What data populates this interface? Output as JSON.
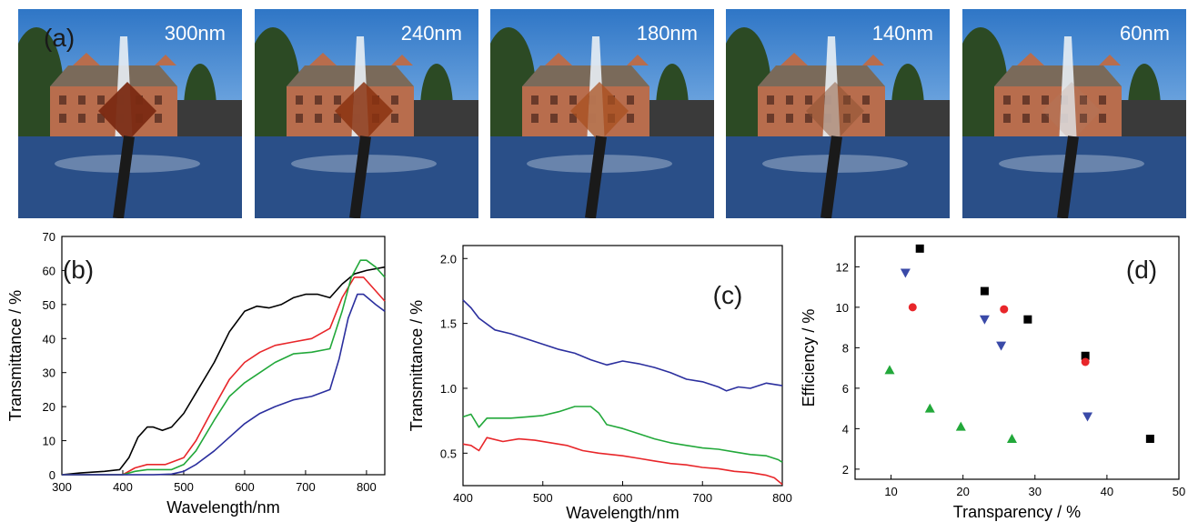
{
  "panel_a": {
    "label": "(a)",
    "photos": [
      {
        "caption": "300nm",
        "tint": "#7a2a12",
        "tint_opacity": 0.95
      },
      {
        "caption": "240nm",
        "tint": "#8a3210",
        "tint_opacity": 0.85
      },
      {
        "caption": "180nm",
        "tint": "#a85020",
        "tint_opacity": 0.75
      },
      {
        "caption": "140nm",
        "tint": "#8a5030",
        "tint_opacity": 0.5
      },
      {
        "caption": "60nm",
        "tint": "#b08070",
        "tint_opacity": 0.2
      }
    ],
    "colors": {
      "sky": "#2f76c6",
      "sky_light": "#7fb2e6",
      "building": "#b86d4d",
      "roof": "#7a6a5a",
      "water": "#2a4f88",
      "tree": "#2c4a24",
      "fountain": "#e8eef4",
      "stick": "#1a1a1a"
    }
  },
  "chart_data": [
    {
      "panel": "(b)",
      "type": "line",
      "xlabel": "Wavelength/nm",
      "ylabel": "Transmittance / %",
      "xlim": [
        300,
        830
      ],
      "ylim": [
        0,
        70
      ],
      "xticks": [
        300,
        400,
        500,
        600,
        700,
        800
      ],
      "yticks": [
        0,
        10,
        20,
        30,
        40,
        50,
        60,
        70
      ],
      "grid": false,
      "series": [
        {
          "color": "#000000",
          "points": [
            [
              300,
              0
            ],
            [
              330,
              0.5
            ],
            [
              370,
              1
            ],
            [
              395,
              1.5
            ],
            [
              410,
              5
            ],
            [
              425,
              11
            ],
            [
              440,
              14
            ],
            [
              450,
              14
            ],
            [
              465,
              13
            ],
            [
              480,
              14
            ],
            [
              500,
              18
            ],
            [
              520,
              24
            ],
            [
              550,
              33
            ],
            [
              575,
              42
            ],
            [
              600,
              48
            ],
            [
              620,
              49.5
            ],
            [
              640,
              49
            ],
            [
              660,
              50
            ],
            [
              680,
              52
            ],
            [
              700,
              53
            ],
            [
              720,
              53
            ],
            [
              740,
              52
            ],
            [
              760,
              56
            ],
            [
              780,
              59
            ],
            [
              800,
              60
            ],
            [
              830,
              61
            ]
          ]
        },
        {
          "color": "#e8262a",
          "points": [
            [
              300,
              0
            ],
            [
              400,
              0
            ],
            [
              420,
              2
            ],
            [
              440,
              3
            ],
            [
              470,
              3
            ],
            [
              500,
              5
            ],
            [
              520,
              10
            ],
            [
              550,
              20
            ],
            [
              575,
              28
            ],
            [
              600,
              33
            ],
            [
              625,
              36
            ],
            [
              650,
              38
            ],
            [
              680,
              39
            ],
            [
              710,
              40
            ],
            [
              740,
              43
            ],
            [
              760,
              52
            ],
            [
              780,
              58
            ],
            [
              795,
              58
            ],
            [
              815,
              54
            ],
            [
              830,
              51
            ]
          ]
        },
        {
          "color": "#22a83a",
          "points": [
            [
              300,
              0
            ],
            [
              400,
              0
            ],
            [
              420,
              1
            ],
            [
              440,
              1.5
            ],
            [
              480,
              1.5
            ],
            [
              500,
              3
            ],
            [
              520,
              7
            ],
            [
              550,
              16
            ],
            [
              575,
              23
            ],
            [
              600,
              27
            ],
            [
              625,
              30
            ],
            [
              650,
              33
            ],
            [
              680,
              35.5
            ],
            [
              710,
              36
            ],
            [
              740,
              37
            ],
            [
              760,
              48
            ],
            [
              775,
              58
            ],
            [
              790,
              63
            ],
            [
              800,
              63
            ],
            [
              815,
              61
            ],
            [
              830,
              58
            ]
          ]
        },
        {
          "color": "#2b2f9e",
          "points": [
            [
              300,
              0
            ],
            [
              400,
              0
            ],
            [
              450,
              0
            ],
            [
              480,
              0.2
            ],
            [
              500,
              1
            ],
            [
              520,
              3
            ],
            [
              550,
              7
            ],
            [
              575,
              11
            ],
            [
              600,
              15
            ],
            [
              625,
              18
            ],
            [
              650,
              20
            ],
            [
              680,
              22
            ],
            [
              710,
              23
            ],
            [
              740,
              25
            ],
            [
              755,
              34
            ],
            [
              770,
              46
            ],
            [
              785,
              53
            ],
            [
              795,
              53
            ],
            [
              815,
              50
            ],
            [
              830,
              48
            ]
          ]
        }
      ]
    },
    {
      "panel": "(c)",
      "type": "line",
      "xlabel": "Wavelength/nm",
      "ylabel": "Transmittance / %",
      "xlim": [
        400,
        800
      ],
      "ylim": [
        0.25,
        2.1
      ],
      "xticks": [
        400,
        500,
        600,
        700,
        800
      ],
      "yticks": [
        0.5,
        1.0,
        1.5,
        2.0
      ],
      "ytick_labels": [
        "0.5",
        "1.0",
        "1.5",
        "2.0"
      ],
      "grid": false,
      "series": [
        {
          "color": "#2b2f9e",
          "points": [
            [
              400,
              1.68
            ],
            [
              410,
              1.62
            ],
            [
              420,
              1.54
            ],
            [
              440,
              1.45
            ],
            [
              460,
              1.42
            ],
            [
              480,
              1.38
            ],
            [
              500,
              1.34
            ],
            [
              520,
              1.3
            ],
            [
              540,
              1.27
            ],
            [
              560,
              1.22
            ],
            [
              580,
              1.18
            ],
            [
              600,
              1.21
            ],
            [
              620,
              1.19
            ],
            [
              640,
              1.16
            ],
            [
              660,
              1.12
            ],
            [
              680,
              1.07
            ],
            [
              700,
              1.05
            ],
            [
              720,
              1.01
            ],
            [
              730,
              0.98
            ],
            [
              745,
              1.01
            ],
            [
              760,
              1.0
            ],
            [
              780,
              1.04
            ],
            [
              790,
              1.03
            ],
            [
              800,
              1.02
            ]
          ]
        },
        {
          "color": "#22a83a",
          "points": [
            [
              400,
              0.78
            ],
            [
              410,
              0.8
            ],
            [
              420,
              0.7
            ],
            [
              430,
              0.77
            ],
            [
              460,
              0.77
            ],
            [
              480,
              0.78
            ],
            [
              500,
              0.79
            ],
            [
              520,
              0.82
            ],
            [
              540,
              0.86
            ],
            [
              560,
              0.86
            ],
            [
              570,
              0.81
            ],
            [
              580,
              0.72
            ],
            [
              600,
              0.69
            ],
            [
              620,
              0.65
            ],
            [
              640,
              0.61
            ],
            [
              660,
              0.58
            ],
            [
              680,
              0.56
            ],
            [
              700,
              0.54
            ],
            [
              720,
              0.53
            ],
            [
              740,
              0.51
            ],
            [
              760,
              0.49
            ],
            [
              780,
              0.48
            ],
            [
              795,
              0.45
            ],
            [
              800,
              0.43
            ]
          ]
        },
        {
          "color": "#e8262a",
          "points": [
            [
              400,
              0.57
            ],
            [
              410,
              0.56
            ],
            [
              420,
              0.52
            ],
            [
              430,
              0.62
            ],
            [
              450,
              0.59
            ],
            [
              470,
              0.61
            ],
            [
              490,
              0.6
            ],
            [
              510,
              0.58
            ],
            [
              530,
              0.56
            ],
            [
              550,
              0.52
            ],
            [
              570,
              0.5
            ],
            [
              600,
              0.48
            ],
            [
              620,
              0.46
            ],
            [
              640,
              0.44
            ],
            [
              660,
              0.42
            ],
            [
              680,
              0.41
            ],
            [
              700,
              0.39
            ],
            [
              720,
              0.38
            ],
            [
              740,
              0.36
            ],
            [
              760,
              0.35
            ],
            [
              780,
              0.33
            ],
            [
              790,
              0.31
            ],
            [
              800,
              0.26
            ]
          ]
        }
      ]
    },
    {
      "panel": "(d)",
      "type": "scatter",
      "xlabel": "Transparency / %",
      "ylabel": "Efficiency / %",
      "xlim": [
        5,
        50
      ],
      "ylim": [
        1.5,
        13.5
      ],
      "xticks": [
        10,
        20,
        30,
        40,
        50
      ],
      "yticks": [
        2,
        4,
        6,
        8,
        10,
        12
      ],
      "grid": false,
      "series": [
        {
          "marker": "square",
          "color": "#000000",
          "points": [
            [
              14,
              12.9
            ],
            [
              23,
              10.8
            ],
            [
              29,
              9.4
            ],
            [
              37,
              7.6
            ],
            [
              46,
              3.5
            ]
          ]
        },
        {
          "marker": "circle",
          "color": "#e8262a",
          "points": [
            [
              13,
              10.0
            ],
            [
              25.7,
              9.9
            ],
            [
              37,
              7.3
            ]
          ]
        },
        {
          "marker": "triangle-down",
          "color": "#3a4aa8",
          "points": [
            [
              12,
              11.7
            ],
            [
              23,
              9.4
            ],
            [
              25.3,
              8.1
            ],
            [
              37.3,
              4.6
            ]
          ]
        },
        {
          "marker": "triangle-up",
          "color": "#22a83a",
          "points": [
            [
              9.8,
              6.9
            ],
            [
              15.4,
              5.0
            ],
            [
              19.7,
              4.1
            ],
            [
              26.8,
              3.5
            ]
          ]
        }
      ]
    }
  ]
}
